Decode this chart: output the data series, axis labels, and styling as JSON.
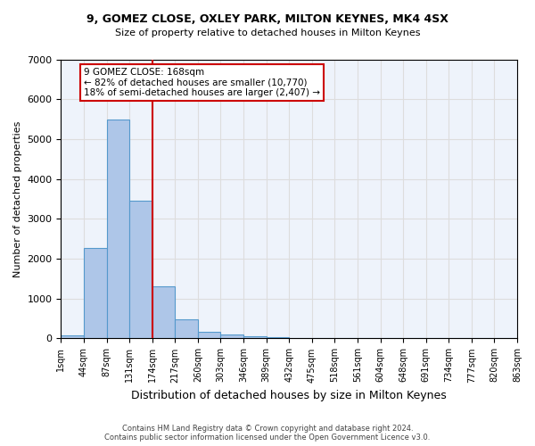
{
  "title": "9, GOMEZ CLOSE, OXLEY PARK, MILTON KEYNES, MK4 4SX",
  "subtitle": "Size of property relative to detached houses in Milton Keynes",
  "xlabel": "Distribution of detached houses by size in Milton Keynes",
  "ylabel": "Number of detached properties",
  "footnote": "Contains HM Land Registry data © Crown copyright and database right 2024.\nContains public sector information licensed under the Open Government Licence v3.0.",
  "bin_labels": [
    "1sqm",
    "44sqm",
    "87sqm",
    "131sqm",
    "174sqm",
    "217sqm",
    "260sqm",
    "303sqm",
    "346sqm",
    "389sqm",
    "432sqm",
    "475sqm",
    "518sqm",
    "561sqm",
    "604sqm",
    "648sqm",
    "691sqm",
    "734sqm",
    "777sqm",
    "820sqm",
    "863sqm"
  ],
  "bar_values": [
    75,
    2280,
    5480,
    3450,
    1310,
    470,
    160,
    100,
    65,
    35,
    0,
    0,
    0,
    0,
    0,
    0,
    0,
    0,
    0,
    0
  ],
  "bar_color": "#aec6e8",
  "bar_edge_color": "#5599cc",
  "vline_x": 4,
  "vline_color": "#cc0000",
  "vline_label": "9 GOMEZ CLOSE: 168sqm",
  "annotation_smaller": "← 82% of detached houses are smaller (10,770)",
  "annotation_larger": "18% of semi-detached houses are larger (2,407) →",
  "annotation_box_color": "#cc0000",
  "ylim": [
    0,
    7000
  ],
  "yticks": [
    0,
    1000,
    2000,
    3000,
    4000,
    5000,
    6000,
    7000
  ],
  "grid_color": "#dddddd",
  "bg_color": "#eef3fb"
}
